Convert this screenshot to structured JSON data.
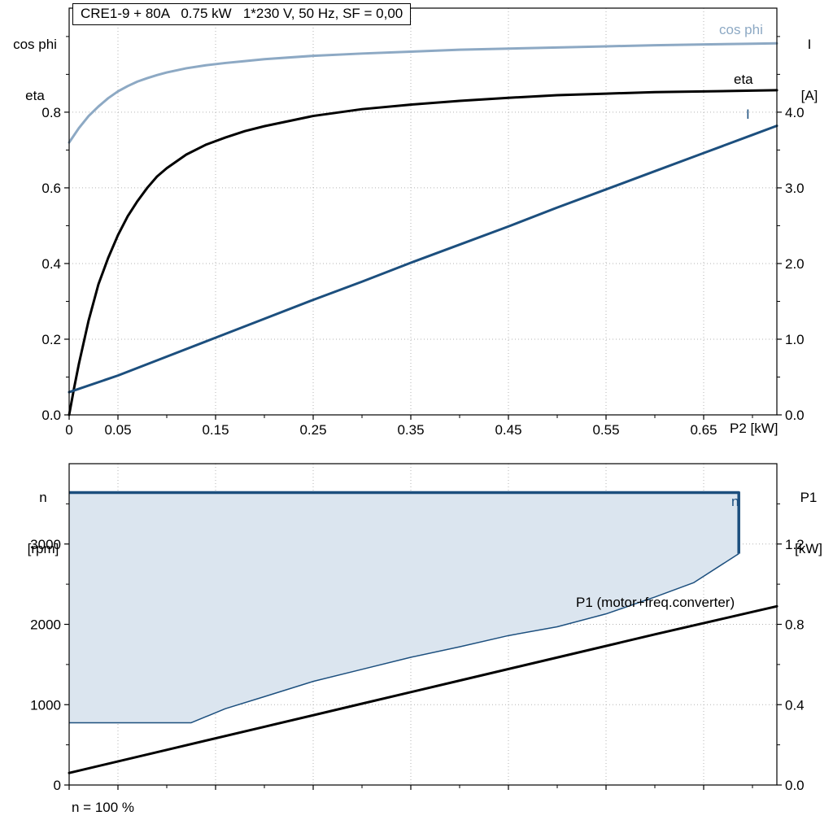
{
  "colors": {
    "cos_phi": "#8da9c4",
    "current": "#1c4f7e",
    "black": "#000000",
    "n_fill": "#dbe5ef",
    "grid": "#b3b3b3"
  },
  "chart_data": [
    {
      "type": "line",
      "title": "CRE1-9 + 80A   0.75 kW   1*230 V, 50 Hz, SF = 0,00",
      "xlabel": "P2 [kW]",
      "ylabel_left": [
        "cos phi",
        "eta"
      ],
      "ylabel_right": [
        "I",
        "[A]"
      ],
      "xlim": [
        0,
        0.725
      ],
      "ylim_left": [
        0,
        1.075
      ],
      "ylim_right": [
        0,
        5.375
      ],
      "grid": true,
      "legend_position": "inline-right",
      "xticks": [
        [
          0,
          "0"
        ],
        [
          0.05,
          "0.05"
        ],
        [
          0.15,
          "0.15"
        ],
        [
          0.25,
          "0.25"
        ],
        [
          0.35,
          "0.35"
        ],
        [
          0.45,
          "0.45"
        ],
        [
          0.55,
          "0.55"
        ],
        [
          0.65,
          "0.65"
        ]
      ],
      "xticks_minor": [
        0.1,
        0.2,
        0.3,
        0.4,
        0.5,
        0.6,
        0.7
      ],
      "yticks_left": [
        [
          0,
          "0.0"
        ],
        [
          0.2,
          "0.2"
        ],
        [
          0.4,
          "0.4"
        ],
        [
          0.6,
          "0.6"
        ],
        [
          0.8,
          "0.8"
        ]
      ],
      "yticks_left_minor": [
        0.1,
        0.3,
        0.5,
        0.7,
        0.9,
        1.0
      ],
      "yticks_right": [
        [
          0,
          "0.0"
        ],
        [
          1,
          "1.0"
        ],
        [
          2,
          "2.0"
        ],
        [
          3,
          "3.0"
        ],
        [
          4,
          "4.0"
        ]
      ],
      "yticks_right_minor": [
        0.5,
        1.5,
        2.5,
        3.5,
        4.5,
        5.0
      ],
      "series": [
        {
          "name": "cos phi",
          "axis": "left",
          "color": "cos_phi",
          "x": [
            0,
            0.01,
            0.02,
            0.03,
            0.04,
            0.05,
            0.06,
            0.07,
            0.08,
            0.09,
            0.1,
            0.12,
            0.14,
            0.16,
            0.18,
            0.2,
            0.25,
            0.3,
            0.35,
            0.4,
            0.45,
            0.5,
            0.55,
            0.6,
            0.65,
            0.7,
            0.725
          ],
          "y": [
            0.72,
            0.758,
            0.79,
            0.815,
            0.837,
            0.855,
            0.869,
            0.881,
            0.89,
            0.898,
            0.905,
            0.916,
            0.924,
            0.93,
            0.935,
            0.94,
            0.949,
            0.955,
            0.96,
            0.965,
            0.968,
            0.971,
            0.974,
            0.977,
            0.979,
            0.981,
            0.982
          ]
        },
        {
          "name": "eta",
          "axis": "left",
          "color": "black",
          "x": [
            0,
            0.005,
            0.01,
            0.02,
            0.03,
            0.04,
            0.05,
            0.06,
            0.07,
            0.08,
            0.09,
            0.1,
            0.12,
            0.14,
            0.16,
            0.18,
            0.2,
            0.25,
            0.3,
            0.35,
            0.4,
            0.45,
            0.5,
            0.55,
            0.6,
            0.65,
            0.7,
            0.725
          ],
          "y": [
            0,
            0.07,
            0.135,
            0.25,
            0.345,
            0.415,
            0.475,
            0.525,
            0.565,
            0.6,
            0.63,
            0.652,
            0.688,
            0.714,
            0.733,
            0.75,
            0.763,
            0.79,
            0.808,
            0.82,
            0.83,
            0.838,
            0.845,
            0.849,
            0.853,
            0.855,
            0.857,
            0.858
          ]
        },
        {
          "name": "I",
          "axis": "right",
          "color": "current",
          "x": [
            0,
            0.05,
            0.1,
            0.15,
            0.2,
            0.25,
            0.3,
            0.35,
            0.4,
            0.45,
            0.5,
            0.55,
            0.6,
            0.65,
            0.7,
            0.725
          ],
          "y": [
            0.3,
            0.52,
            0.77,
            1.02,
            1.27,
            1.52,
            1.76,
            2.01,
            2.25,
            2.49,
            2.74,
            2.98,
            3.22,
            3.46,
            3.7,
            3.82
          ]
        }
      ]
    },
    {
      "type": "line+area",
      "title": "",
      "xlabel": "",
      "ylabel_left": [
        "n",
        "[rpm]"
      ],
      "ylabel_right": [
        "P1",
        "[kW]"
      ],
      "note": "n = 100 %",
      "xlim": [
        0,
        0.725
      ],
      "ylim_left": [
        0,
        4000
      ],
      "ylim_right": [
        0,
        1.6
      ],
      "grid": true,
      "xtick_labels": false,
      "xticks": [
        [
          0,
          ""
        ],
        [
          0.05,
          ""
        ],
        [
          0.15,
          ""
        ],
        [
          0.25,
          ""
        ],
        [
          0.35,
          ""
        ],
        [
          0.45,
          ""
        ],
        [
          0.55,
          ""
        ],
        [
          0.65,
          ""
        ]
      ],
      "xticks_minor": [
        0.1,
        0.2,
        0.3,
        0.4,
        0.5,
        0.6,
        0.7
      ],
      "yticks_left": [
        [
          0,
          "0"
        ],
        [
          1000,
          "1000"
        ],
        [
          2000,
          "2000"
        ],
        [
          3000,
          "3000"
        ]
      ],
      "yticks_left_minor": [
        500,
        1500,
        2500,
        3500
      ],
      "yticks_right": [
        [
          0,
          "0.0"
        ],
        [
          0.4,
          "0.4"
        ],
        [
          0.8,
          "0.8"
        ],
        [
          1.2,
          "1.2"
        ]
      ],
      "yticks_right_minor": [
        0.2,
        0.6,
        1.0,
        1.4
      ],
      "envelope": {
        "name": "n",
        "axis": "left",
        "fill": "n_fill",
        "line": "current",
        "upper": [
          [
            0,
            3640
          ],
          [
            0.686,
            3640
          ],
          [
            0.686,
            2880
          ]
        ],
        "lower": [
          [
            0,
            775
          ],
          [
            0.125,
            775
          ],
          [
            0.16,
            950
          ],
          [
            0.2,
            1100
          ],
          [
            0.25,
            1290
          ],
          [
            0.3,
            1440
          ],
          [
            0.35,
            1590
          ],
          [
            0.4,
            1720
          ],
          [
            0.45,
            1860
          ],
          [
            0.5,
            1970
          ],
          [
            0.55,
            2130
          ],
          [
            0.6,
            2340
          ],
          [
            0.64,
            2520
          ],
          [
            0.686,
            2880
          ]
        ]
      },
      "series": [
        {
          "name": "P1 (motor+freq.converter)",
          "axis": "right",
          "color": "black",
          "x": [
            0,
            0.1,
            0.2,
            0.3,
            0.4,
            0.5,
            0.6,
            0.7,
            0.725
          ],
          "y": [
            0.06,
            0.175,
            0.29,
            0.405,
            0.52,
            0.635,
            0.75,
            0.862,
            0.89
          ]
        }
      ]
    }
  ]
}
